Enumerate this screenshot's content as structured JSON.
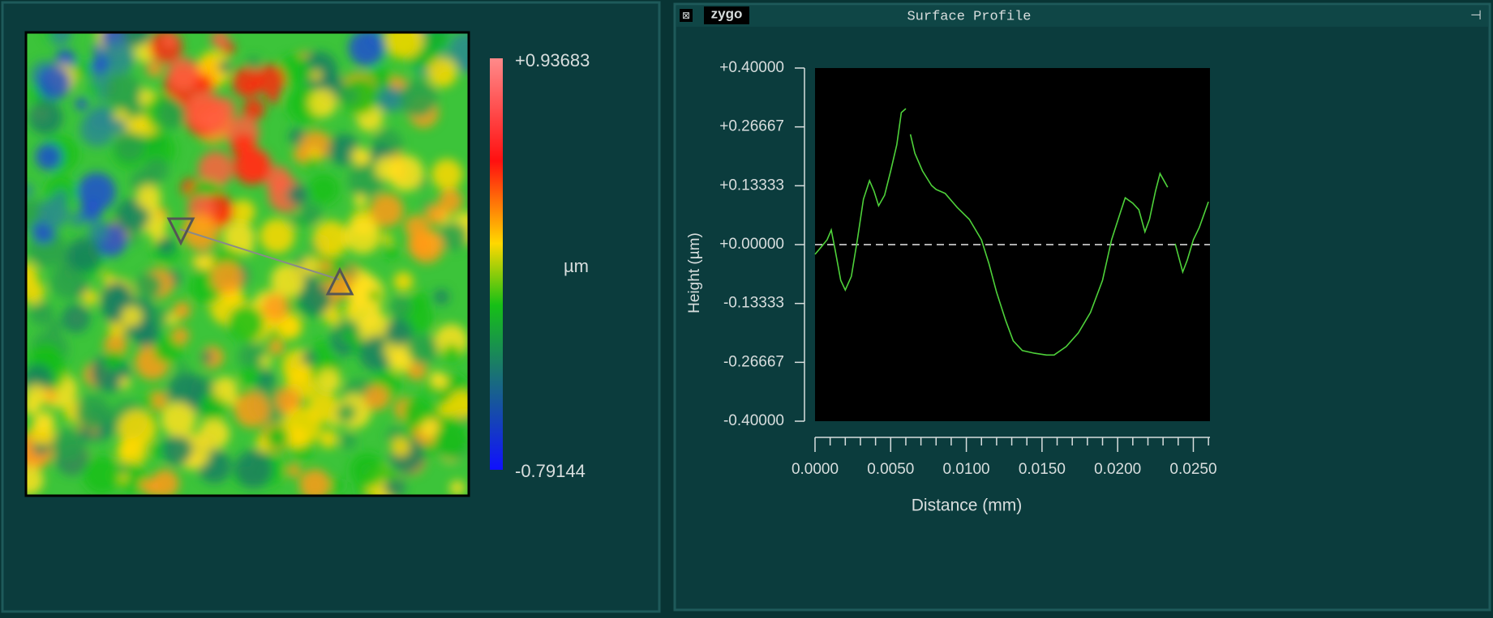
{
  "window": {
    "title": "Surface Profile",
    "logo": "zygo"
  },
  "colorbar": {
    "max": {
      "value": 0.93683,
      "label": "+0.93683"
    },
    "min": {
      "value": -0.79144,
      "label": "-0.79144"
    },
    "unit": "µm"
  },
  "chart_data": {
    "type": "line",
    "x_label": "Distance (mm)",
    "y_label": "Height (µm)",
    "xlim": [
      0,
      0.0261
    ],
    "ylim": [
      -0.4,
      0.4
    ],
    "xticks": [
      {
        "value": 0,
        "label": "0.0000"
      },
      {
        "value": 0.005,
        "label": "0.0050"
      },
      {
        "value": 0.01,
        "label": "0.0100"
      },
      {
        "value": 0.015,
        "label": "0.0150"
      },
      {
        "value": 0.02,
        "label": "0.0200"
      },
      {
        "value": 0.025,
        "label": "0.0250"
      }
    ],
    "xminorticks": [
      0.001,
      0.002,
      0.003,
      0.004,
      0.006,
      0.007,
      0.008,
      0.009,
      0.011,
      0.012,
      0.013,
      0.014,
      0.016,
      0.017,
      0.018,
      0.019,
      0.021,
      0.022,
      0.023,
      0.024,
      0.026
    ],
    "yticks": [
      {
        "value": 0.4,
        "label": "+0.40000"
      },
      {
        "value": 0.26667,
        "label": "+0.26667"
      },
      {
        "value": 0.13333,
        "label": "+0.13333"
      },
      {
        "value": 0,
        "label": "+0.00000"
      },
      {
        "value": -0.13333,
        "label": "-0.13333"
      },
      {
        "value": -0.26667,
        "label": "-0.26667"
      },
      {
        "value": -0.4,
        "label": "-0.40000"
      }
    ],
    "reference_line": 0,
    "series": [
      {
        "color": "#4ed13a",
        "x": [
          0,
          0.00037,
          0.0008,
          0.00107,
          0.0013,
          0.0017,
          0.002,
          0.0024,
          0.0028,
          0.0032,
          0.0036,
          0.0039,
          0.0042,
          0.0046,
          0.005,
          0.0054,
          0.0057,
          0.006,
          null,
          0.0063,
          0.0066,
          0.0071,
          0.0077,
          0.008,
          0.0086,
          0.0094,
          0.0102,
          0.011,
          0.0115,
          0.012,
          0.0126,
          0.0131,
          0.0137,
          0.0145,
          0.0153,
          0.0158,
          0.0166,
          0.0174,
          0.0182,
          0.019,
          0.0196,
          0.0202,
          0.0205,
          0.021,
          0.0214,
          0.0218,
          0.0221,
          0.0225,
          0.0228,
          0.0233,
          null,
          0.0238,
          0.0243,
          0.0246,
          0.025,
          0.0254,
          0.026
        ],
        "values": [
          -0.022,
          -0.007,
          0.011,
          0.033,
          -0.007,
          -0.081,
          -0.103,
          -0.072,
          0.011,
          0.103,
          0.145,
          0.121,
          0.088,
          0.112,
          0.167,
          0.226,
          0.299,
          0.308,
          null,
          0.25,
          0.207,
          0.167,
          0.134,
          0.125,
          0.116,
          0.084,
          0.057,
          0.011,
          -0.044,
          -0.108,
          -0.172,
          -0.218,
          -0.24,
          -0.246,
          -0.25,
          -0.25,
          -0.231,
          -0.2,
          -0.154,
          -0.081,
          0.011,
          0.075,
          0.106,
          0.094,
          0.079,
          0.029,
          0.057,
          0.121,
          0.161,
          0.13,
          null,
          0.002,
          -0.062,
          -0.035,
          0.011,
          0.039,
          0.097
        ]
      }
    ]
  }
}
